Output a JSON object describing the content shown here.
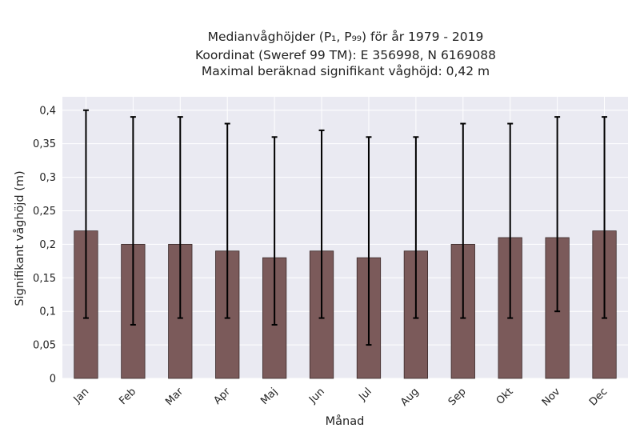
{
  "chart_data": {
    "type": "bar",
    "title_lines": [
      "Medianvåghöjder (P₁, P₉₉) för år 1979 - 2019",
      "Koordinat (Sweref 99 TM): E 356998, N 6169088",
      "Maximal beräknad signifikant våghöjd: 0,42 m"
    ],
    "xlabel": "Månad",
    "ylabel": "Signifikant våghöjd (m)",
    "categories": [
      "Jan",
      "Feb",
      "Mar",
      "Apr",
      "Maj",
      "Jun",
      "Jul",
      "Aug",
      "Sep",
      "Okt",
      "Nov",
      "Dec"
    ],
    "values": [
      0.22,
      0.2,
      0.2,
      0.19,
      0.18,
      0.19,
      0.18,
      0.19,
      0.2,
      0.21,
      0.21,
      0.22
    ],
    "p1": [
      0.09,
      0.08,
      0.09,
      0.09,
      0.08,
      0.09,
      0.05,
      0.09,
      0.09,
      0.09,
      0.1,
      0.09
    ],
    "p99": [
      0.4,
      0.39,
      0.39,
      0.38,
      0.36,
      0.37,
      0.36,
      0.36,
      0.38,
      0.38,
      0.39,
      0.39
    ],
    "ylim": [
      0,
      0.42
    ],
    "yticks": [
      0,
      0.05,
      0.1,
      0.15,
      0.2,
      0.25,
      0.3,
      0.35,
      0.4
    ],
    "ytick_labels": [
      "0",
      "0,05",
      "0,1",
      "0,15",
      "0,2",
      "0,25",
      "0,3",
      "0,35",
      "0,4"
    ],
    "grid": true,
    "colors": {
      "plot_background": "#eaeaf2",
      "bar_fill": "#7b5a5a",
      "bar_edge": "#3b2b2b",
      "errorbar": "#000000",
      "grid": "#ffffff"
    }
  }
}
